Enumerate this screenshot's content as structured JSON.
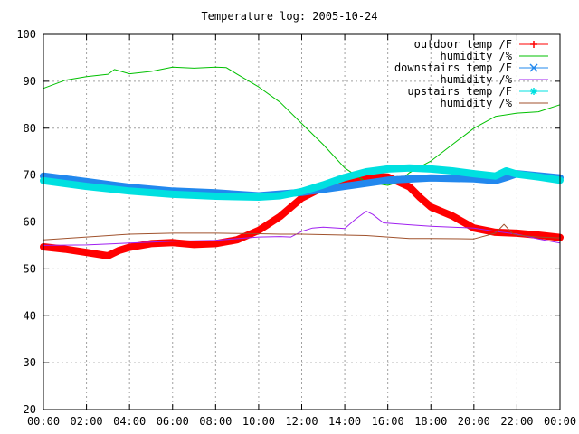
{
  "chart_data": {
    "type": "line",
    "title": "Temperature log: 2005-10-24",
    "xlabel": "",
    "ylabel": "",
    "xlim": [
      0,
      24
    ],
    "ylim": [
      20,
      100
    ],
    "x_ticks": [
      "00:00",
      "02:00",
      "04:00",
      "06:00",
      "08:00",
      "10:00",
      "12:00",
      "14:00",
      "16:00",
      "18:00",
      "20:00",
      "22:00",
      "00:00"
    ],
    "y_ticks": [
      "20",
      "30",
      "40",
      "50",
      "60",
      "70",
      "80",
      "90",
      "100"
    ],
    "grid": true,
    "legend_position": "top-right",
    "series": [
      {
        "name": "outdoor temp /F",
        "color": "#ff0000",
        "marker": "plus",
        "thick": true,
        "points": [
          [
            0,
            54.7
          ],
          [
            1,
            54.2
          ],
          [
            2,
            53.5
          ],
          [
            3,
            52.8
          ],
          [
            3.5,
            53.9
          ],
          [
            4,
            54.6
          ],
          [
            5,
            55.4
          ],
          [
            6,
            55.6
          ],
          [
            7,
            55.2
          ],
          [
            8,
            55.4
          ],
          [
            9,
            56.2
          ],
          [
            10,
            58.2
          ],
          [
            11,
            61.2
          ],
          [
            12,
            65.1
          ],
          [
            13,
            67.4
          ],
          [
            14,
            69.1
          ],
          [
            15,
            69.7
          ],
          [
            16,
            69.6
          ],
          [
            17,
            67.5
          ],
          [
            17.5,
            65.2
          ],
          [
            18,
            63.2
          ],
          [
            19,
            61.3
          ],
          [
            20,
            58.7
          ],
          [
            21,
            57.8
          ],
          [
            22,
            57.6
          ],
          [
            23,
            57.2
          ],
          [
            24,
            56.7
          ]
        ]
      },
      {
        "name": "humidity /%",
        "color": "#00c000",
        "marker": "none",
        "thick": false,
        "points": [
          [
            0,
            88.5
          ],
          [
            1,
            90.2
          ],
          [
            2,
            91
          ],
          [
            3,
            91.5
          ],
          [
            3.3,
            92.5
          ],
          [
            4,
            91.6
          ],
          [
            5,
            92.1
          ],
          [
            6,
            93
          ],
          [
            7,
            92.8
          ],
          [
            8,
            93
          ],
          [
            8.5,
            92.9
          ],
          [
            9,
            91.5
          ],
          [
            10,
            88.8
          ],
          [
            11,
            85.5
          ],
          [
            12,
            81
          ],
          [
            13,
            76.5
          ],
          [
            14,
            71.5
          ],
          [
            15,
            68.5
          ],
          [
            16,
            67.8
          ],
          [
            16.5,
            68.5
          ],
          [
            17,
            70.5
          ],
          [
            18,
            73
          ],
          [
            19,
            76.5
          ],
          [
            20,
            80
          ],
          [
            21,
            82.5
          ],
          [
            22,
            83.2
          ],
          [
            23,
            83.5
          ],
          [
            24,
            85
          ]
        ]
      },
      {
        "name": "downstairs temp /F",
        "color": "#2288ee",
        "marker": "cross",
        "thick": true,
        "points": [
          [
            0,
            69.8
          ],
          [
            2,
            68.6
          ],
          [
            4,
            67.4
          ],
          [
            6,
            66.6
          ],
          [
            8,
            66.2
          ],
          [
            10,
            65.6
          ],
          [
            12,
            66.3
          ],
          [
            14,
            67.6
          ],
          [
            16,
            68.9
          ],
          [
            18,
            69.4
          ],
          [
            20,
            69.2
          ],
          [
            21,
            68.8
          ],
          [
            21.5,
            69.5
          ],
          [
            22,
            70.3
          ],
          [
            24,
            69.4
          ]
        ]
      },
      {
        "name": "humidity /%",
        "color": "#a020f0",
        "marker": "none",
        "thick": false,
        "points": [
          [
            0,
            55
          ],
          [
            2,
            55.1
          ],
          [
            4,
            55.5
          ],
          [
            6,
            55.9
          ],
          [
            8,
            56.1
          ],
          [
            10,
            56.8
          ],
          [
            11,
            56.9
          ],
          [
            11.5,
            56.8
          ],
          [
            12,
            58
          ],
          [
            12.5,
            58.7
          ],
          [
            13,
            58.9
          ],
          [
            14,
            58.6
          ],
          [
            14.5,
            60.6
          ],
          [
            15,
            62.3
          ],
          [
            15.3,
            61.6
          ],
          [
            15.8,
            59.8
          ],
          [
            17,
            59.4
          ],
          [
            18,
            59.1
          ],
          [
            20,
            58.7
          ],
          [
            21,
            58
          ],
          [
            22,
            57.4
          ],
          [
            23,
            56.4
          ],
          [
            24,
            55.5
          ]
        ]
      },
      {
        "name": "upstairs temp /F",
        "color": "#00e0e0",
        "marker": "star",
        "thick": true,
        "points": [
          [
            0,
            68.8
          ],
          [
            2,
            67.6
          ],
          [
            4,
            66.6
          ],
          [
            6,
            65.9
          ],
          [
            8,
            65.5
          ],
          [
            10,
            65.3
          ],
          [
            11,
            65.6
          ],
          [
            12,
            66.5
          ],
          [
            13,
            67.9
          ],
          [
            14,
            69.5
          ],
          [
            15,
            70.7
          ],
          [
            16,
            71.3
          ],
          [
            17,
            71.5
          ],
          [
            18,
            71.3
          ],
          [
            19,
            70.9
          ],
          [
            20,
            70.3
          ],
          [
            21,
            69.8
          ],
          [
            21.5,
            70.9
          ],
          [
            22,
            70.2
          ],
          [
            23,
            69.6
          ],
          [
            24,
            68.9
          ]
        ]
      },
      {
        "name": "humidity /%",
        "color": "#a0522d",
        "marker": "none",
        "thick": false,
        "points": [
          [
            0,
            56.2
          ],
          [
            2,
            56.8
          ],
          [
            4,
            57.4
          ],
          [
            6,
            57.6
          ],
          [
            8,
            57.6
          ],
          [
            10,
            57.5
          ],
          [
            11,
            57.4
          ],
          [
            12,
            57.4
          ],
          [
            13,
            57.3
          ],
          [
            14,
            57.2
          ],
          [
            15,
            57.1
          ],
          [
            16,
            56.8
          ],
          [
            17,
            56.5
          ],
          [
            18,
            56.5
          ],
          [
            20,
            56.4
          ],
          [
            21,
            57.6
          ],
          [
            21.4,
            59.5
          ],
          [
            21.8,
            57.5
          ],
          [
            22,
            57.2
          ],
          [
            23,
            56.8
          ],
          [
            24,
            56.6
          ]
        ]
      }
    ]
  }
}
